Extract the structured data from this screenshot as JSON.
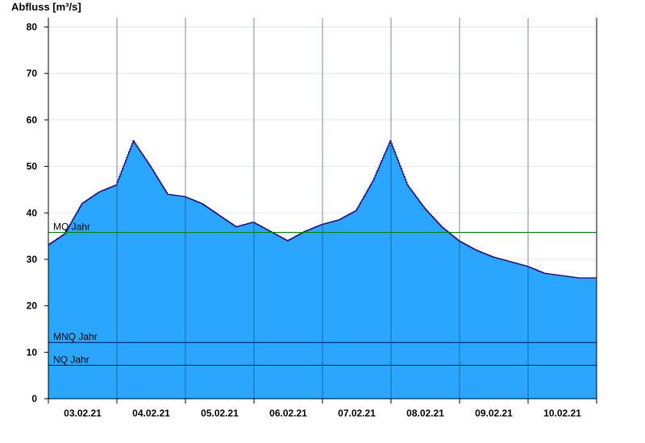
{
  "chart_data": {
    "type": "area",
    "ylabel": "Abfluss [m³/s]",
    "ylim": [
      0,
      82
    ],
    "yticks": [
      0,
      10,
      20,
      30,
      40,
      50,
      60,
      70,
      80
    ],
    "xlim": [
      "2021-02-02T00:00",
      "2021-02-10T00:00"
    ],
    "xtick_labels": [
      "03.02.21",
      "04.02.21",
      "05.02.21",
      "06.02.21",
      "07.02.21",
      "08.02.21",
      "09.02.21",
      "10.02.21"
    ],
    "grid": "horizontal",
    "colors": {
      "fill": "#2ba6ff",
      "line": "#0a0a8c",
      "mq_line": "#008000",
      "ref_line": "#000000"
    },
    "reference_lines": [
      {
        "name": "MQ Jahr",
        "value": 35.8
      },
      {
        "name": "MNQ Jahr",
        "value": 12.1
      },
      {
        "name": "NQ Jahr",
        "value": 7.2
      }
    ],
    "series": [
      {
        "x": [
          "2021-02-02T00:00",
          "2021-02-02T06:00",
          "2021-02-02T12:00",
          "2021-02-02T18:00",
          "2021-02-03T00:00",
          "2021-02-03T06:00",
          "2021-02-03T12:00",
          "2021-02-03T18:00",
          "2021-02-04T00:00",
          "2021-02-04T06:00",
          "2021-02-04T12:00",
          "2021-02-04T18:00",
          "2021-02-05T00:00",
          "2021-02-05T06:00",
          "2021-02-05T12:00",
          "2021-02-05T18:00",
          "2021-02-06T00:00",
          "2021-02-06T06:00",
          "2021-02-06T12:00",
          "2021-02-06T18:00",
          "2021-02-07T00:00",
          "2021-02-07T06:00",
          "2021-02-07T12:00",
          "2021-02-07T18:00",
          "2021-02-08T00:00",
          "2021-02-08T06:00",
          "2021-02-08T12:00",
          "2021-02-08T18:00",
          "2021-02-09T00:00",
          "2021-02-09T06:00",
          "2021-02-09T12:00",
          "2021-02-09T18:00",
          "2021-02-10T00:00"
        ],
        "values": [
          33,
          35.5,
          42,
          44.5,
          46,
          55.5,
          50,
          44,
          43.5,
          42,
          39.5,
          37,
          38,
          36,
          34,
          36,
          37.5,
          38.5,
          40.5,
          47,
          55.5,
          46,
          41,
          37,
          34,
          32,
          30.5,
          29.5,
          28.5,
          27,
          26.5,
          26,
          26
        ]
      }
    ]
  }
}
